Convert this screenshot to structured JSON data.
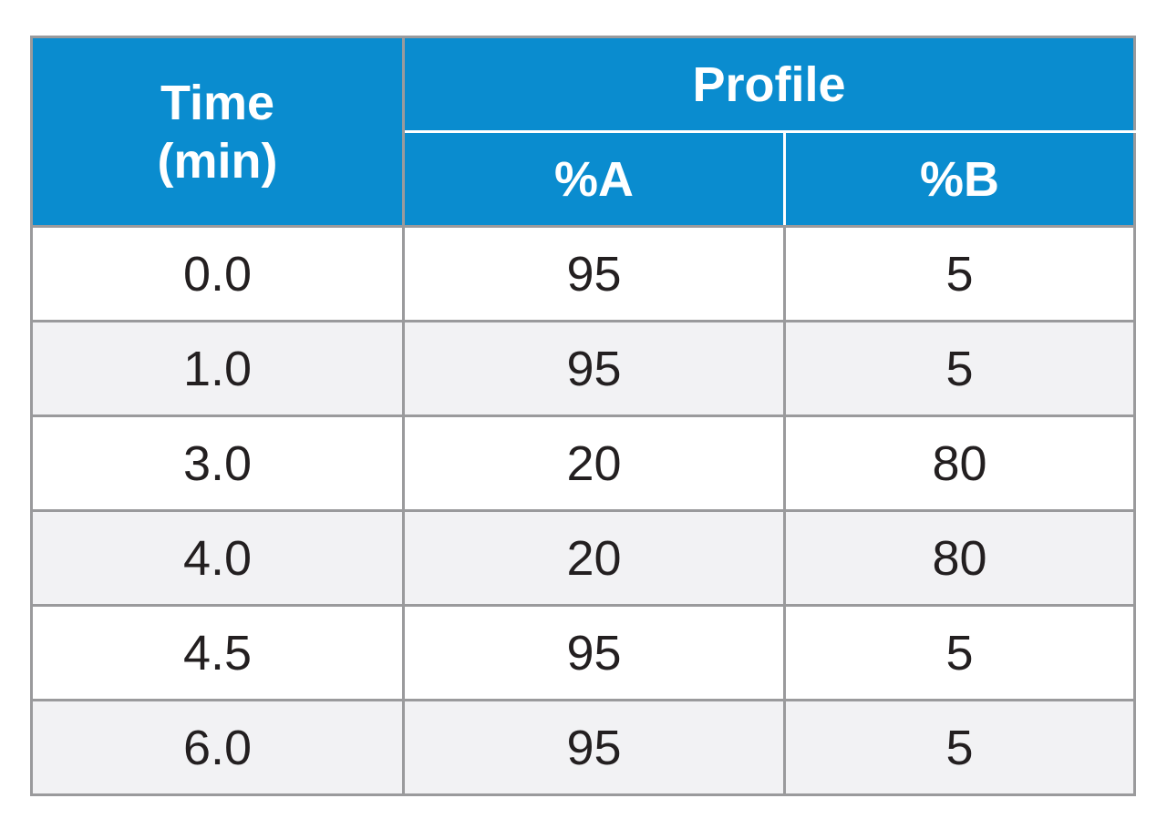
{
  "table": {
    "header": {
      "time_line1": "Time",
      "time_line2": "(min)",
      "group": "Profile",
      "col_a": "%A",
      "col_b": "%B"
    },
    "rows": [
      {
        "time": "0.0",
        "a": "95",
        "b": "5"
      },
      {
        "time": "1.0",
        "a": "95",
        "b": "5"
      },
      {
        "time": "3.0",
        "a": "20",
        "b": "80"
      },
      {
        "time": "4.0",
        "a": "20",
        "b": "80"
      },
      {
        "time": "4.5",
        "a": "95",
        "b": "5"
      },
      {
        "time": "6.0",
        "a": "95",
        "b": "5"
      }
    ],
    "colors": {
      "header_bg": "#0a8ccf",
      "header_text": "#ffffff",
      "border": "#9a9a9c",
      "row_alt_bg": "#f2f2f4",
      "body_text": "#231f20"
    }
  }
}
